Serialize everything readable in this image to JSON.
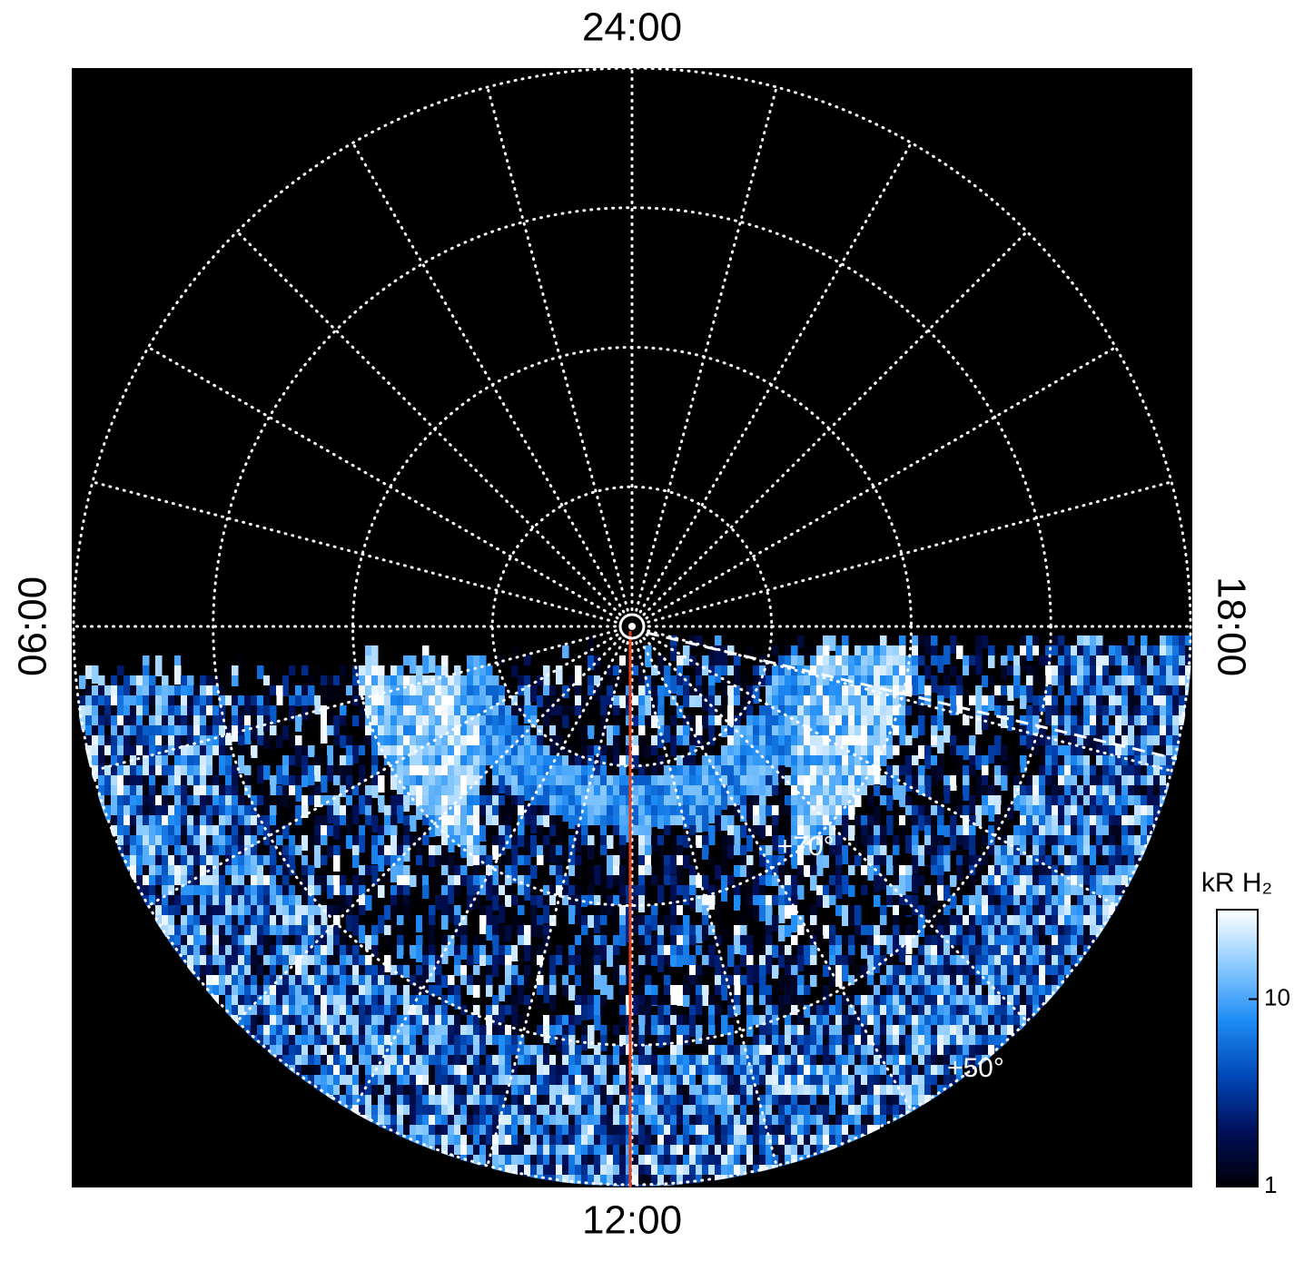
{
  "chart_data": {
    "type": "polar-image",
    "rlim": [
      90,
      50
    ],
    "lat_ticks": [
      80,
      70,
      60,
      50
    ],
    "lat_labels": [
      {
        "value": 70,
        "label": "+70°"
      },
      {
        "value": 50,
        "label": "+50°"
      }
    ],
    "hlim": [
      0,
      24
    ],
    "hour_ticks": [
      0,
      1,
      2,
      3,
      4,
      5,
      6,
      7,
      8,
      9,
      10,
      11,
      12,
      13,
      14,
      15,
      16,
      17,
      18,
      19,
      20,
      21,
      22,
      23
    ],
    "local_time_labels": [
      {
        "value": 0,
        "label": "24:00"
      },
      {
        "value": 6,
        "label": "06:00"
      },
      {
        "value": 12,
        "label": "12:00"
      },
      {
        "value": 18,
        "label": "18:00"
      }
    ],
    "grid": true,
    "colorbar": {
      "title": "kR H₂",
      "log": true,
      "lim": [
        1,
        30
      ],
      "ticks": [
        1,
        10
      ],
      "colormap": [
        "#000008",
        "#00105a",
        "#0048b8",
        "#1e8cf5",
        "#8ccbff",
        "#ffffff"
      ]
    }
  }
}
